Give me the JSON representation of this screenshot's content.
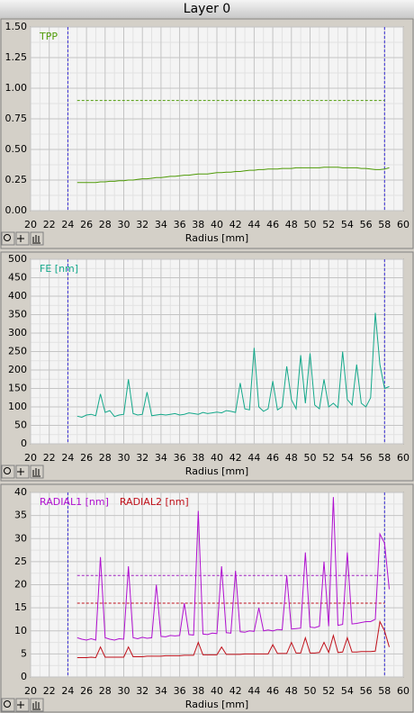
{
  "window_title": "Layer 0",
  "chart_data": [
    {
      "type": "line",
      "xlabel": "Radius [mm]",
      "xlim": [
        20,
        60
      ],
      "xticks": [
        20,
        22,
        24,
        26,
        28,
        30,
        32,
        34,
        36,
        38,
        40,
        42,
        44,
        46,
        48,
        50,
        52,
        54,
        56,
        58,
        60
      ],
      "ylim": [
        0,
        1.5
      ],
      "yticks": [
        {
          "value": 0,
          "label": "0.00"
        },
        {
          "value": 0.25,
          "label": "0.25"
        },
        {
          "value": 0.5,
          "label": "0.50"
        },
        {
          "value": 0.75,
          "label": "0.75"
        },
        {
          "value": 1,
          "label": "1.00"
        },
        {
          "value": 1.25,
          "label": "1.25"
        },
        {
          "value": 1.5,
          "label": "1.50"
        }
      ],
      "grid": true,
      "vlines": [
        24,
        58
      ],
      "vline_color": "#3a2fd6",
      "hlines": [
        {
          "value": 0.9,
          "color": "#4e9a06"
        }
      ],
      "x": [
        25,
        25.5,
        26,
        26.5,
        27,
        27.5,
        28,
        28.5,
        29,
        29.5,
        30,
        30.5,
        31,
        31.5,
        32,
        32.5,
        33,
        33.5,
        34,
        34.5,
        35,
        35.5,
        36,
        36.5,
        37,
        37.5,
        38,
        38.5,
        39,
        39.5,
        40,
        40.5,
        41,
        41.5,
        42,
        42.5,
        43,
        43.5,
        44,
        44.5,
        45,
        45.5,
        46,
        46.5,
        47,
        47.5,
        48,
        48.5,
        49,
        49.5,
        50,
        50.5,
        51,
        51.5,
        52,
        52.5,
        53,
        53.5,
        54,
        54.5,
        55,
        55.5,
        56,
        56.5,
        57,
        57.5,
        58,
        58.5
      ],
      "series": [
        {
          "name": "TPP",
          "color": "#4e9a06",
          "values": [
            0.23,
            0.23,
            0.23,
            0.23,
            0.23,
            0.235,
            0.235,
            0.24,
            0.24,
            0.245,
            0.245,
            0.25,
            0.25,
            0.255,
            0.26,
            0.26,
            0.265,
            0.27,
            0.27,
            0.275,
            0.28,
            0.28,
            0.285,
            0.29,
            0.29,
            0.295,
            0.3,
            0.3,
            0.3,
            0.305,
            0.31,
            0.31,
            0.315,
            0.315,
            0.32,
            0.32,
            0.325,
            0.33,
            0.33,
            0.335,
            0.335,
            0.34,
            0.34,
            0.34,
            0.345,
            0.345,
            0.345,
            0.35,
            0.35,
            0.35,
            0.35,
            0.35,
            0.35,
            0.355,
            0.355,
            0.355,
            0.355,
            0.35,
            0.35,
            0.35,
            0.35,
            0.345,
            0.345,
            0.34,
            0.335,
            0.335,
            0.34,
            0.35
          ]
        }
      ]
    },
    {
      "type": "line",
      "xlabel": "Radius [mm]",
      "xlim": [
        20,
        60
      ],
      "xticks": [
        20,
        22,
        24,
        26,
        28,
        30,
        32,
        34,
        36,
        38,
        40,
        42,
        44,
        46,
        48,
        50,
        52,
        54,
        56,
        58,
        60
      ],
      "ylim": [
        0,
        500
      ],
      "yticks": [
        0,
        50,
        100,
        150,
        200,
        250,
        300,
        350,
        400,
        450,
        500
      ],
      "grid": true,
      "vlines": [
        24,
        58
      ],
      "vline_color": "#3a2fd6",
      "hlines": [],
      "x": [
        25,
        25.5,
        26,
        26.5,
        27,
        27.5,
        28,
        28.5,
        29,
        29.5,
        30,
        30.5,
        31,
        31.5,
        32,
        32.5,
        33,
        33.5,
        34,
        34.5,
        35,
        35.5,
        36,
        36.5,
        37,
        37.5,
        38,
        38.5,
        39,
        39.5,
        40,
        40.5,
        41,
        41.5,
        42,
        42.5,
        43,
        43.5,
        44,
        44.5,
        45,
        45.5,
        46,
        46.5,
        47,
        47.5,
        48,
        48.5,
        49,
        49.5,
        50,
        50.5,
        51,
        51.5,
        52,
        52.5,
        53,
        53.5,
        54,
        54.5,
        55,
        55.5,
        56,
        56.5,
        57,
        57.5,
        58,
        58.5
      ],
      "series": [
        {
          "name": "FE [nm]",
          "color": "#13a88a",
          "values": [
            75,
            72,
            78,
            80,
            76,
            135,
            85,
            90,
            74,
            78,
            80,
            175,
            82,
            78,
            80,
            140,
            76,
            78,
            80,
            78,
            80,
            82,
            78,
            80,
            84,
            82,
            80,
            85,
            82,
            84,
            86,
            84,
            90,
            88,
            85,
            165,
            95,
            92,
            260,
            100,
            88,
            95,
            170,
            92,
            100,
            210,
            120,
            95,
            240,
            110,
            245,
            105,
            95,
            175,
            100,
            110,
            98,
            250,
            120,
            105,
            215,
            110,
            100,
            125,
            355,
            215,
            150,
            155
          ]
        }
      ]
    },
    {
      "type": "line",
      "xlabel": "Radius [mm]",
      "xlim": [
        20,
        60
      ],
      "xticks": [
        20,
        22,
        24,
        26,
        28,
        30,
        32,
        34,
        36,
        38,
        40,
        42,
        44,
        46,
        48,
        50,
        52,
        54,
        56,
        58,
        60
      ],
      "ylim": [
        0,
        40
      ],
      "yticks": [
        0,
        5,
        10,
        15,
        20,
        25,
        30,
        35,
        40
      ],
      "grid": true,
      "vlines": [
        24,
        58
      ],
      "vline_color": "#3a2fd6",
      "hlines": [
        {
          "value": 22,
          "color": "#a020c0"
        },
        {
          "value": 16,
          "color": "#c0101a"
        }
      ],
      "x": [
        25,
        25.5,
        26,
        26.5,
        27,
        27.5,
        28,
        28.5,
        29,
        29.5,
        30,
        30.5,
        31,
        31.5,
        32,
        32.5,
        33,
        33.5,
        34,
        34.5,
        35,
        35.5,
        36,
        36.5,
        37,
        37.5,
        38,
        38.5,
        39,
        39.5,
        40,
        40.5,
        41,
        41.5,
        42,
        42.5,
        43,
        43.5,
        44,
        44.5,
        45,
        45.5,
        46,
        46.5,
        47,
        47.5,
        48,
        48.5,
        49,
        49.5,
        50,
        50.5,
        51,
        51.5,
        52,
        52.5,
        53,
        53.5,
        54,
        54.5,
        55,
        55.5,
        56,
        56.5,
        57,
        57.5,
        58,
        58.5
      ],
      "series": [
        {
          "name": "RADIAL1 [nm]",
          "color": "#b010d0",
          "values": [
            8.5,
            8.2,
            8,
            8.3,
            8,
            26,
            8.5,
            8.2,
            8,
            8.3,
            8.2,
            24,
            8.5,
            8.3,
            8.6,
            8.4,
            8.5,
            20,
            8.8,
            8.7,
            9,
            8.9,
            9,
            16,
            9.2,
            9.1,
            36,
            9.3,
            9.2,
            9.5,
            9.4,
            24,
            9.6,
            9.5,
            23,
            9.8,
            9.7,
            10,
            9.9,
            15,
            10,
            10.2,
            10,
            10.3,
            10.2,
            22,
            10.4,
            10.5,
            10.6,
            27,
            10.8,
            10.7,
            11,
            25,
            11,
            39,
            11.2,
            11.4,
            27,
            11.5,
            11.6,
            11.8,
            12,
            12,
            12.5,
            31,
            29,
            19
          ]
        },
        {
          "name": "RADIAL2 [nm]",
          "color": "#c0101a",
          "values": [
            4.2,
            4.2,
            4.2,
            4.3,
            4.2,
            6.5,
            4.3,
            4.3,
            4.3,
            4.3,
            4.3,
            6.5,
            4.4,
            4.4,
            4.4,
            4.5,
            4.5,
            4.5,
            4.5,
            4.6,
            4.6,
            4.6,
            4.6,
            4.7,
            4.7,
            4.7,
            7.5,
            4.8,
            4.8,
            4.8,
            4.8,
            6.5,
            4.9,
            4.9,
            4.9,
            4.9,
            5,
            5,
            5,
            5,
            5,
            5,
            7,
            5.1,
            5.1,
            5.1,
            7.5,
            5.2,
            5.2,
            8.5,
            5.2,
            5.2,
            5.3,
            7.5,
            5.3,
            9,
            5.3,
            5.4,
            8.5,
            5.4,
            5.4,
            5.5,
            5.5,
            5.5,
            5.6,
            12,
            10,
            6.5
          ]
        }
      ]
    }
  ]
}
